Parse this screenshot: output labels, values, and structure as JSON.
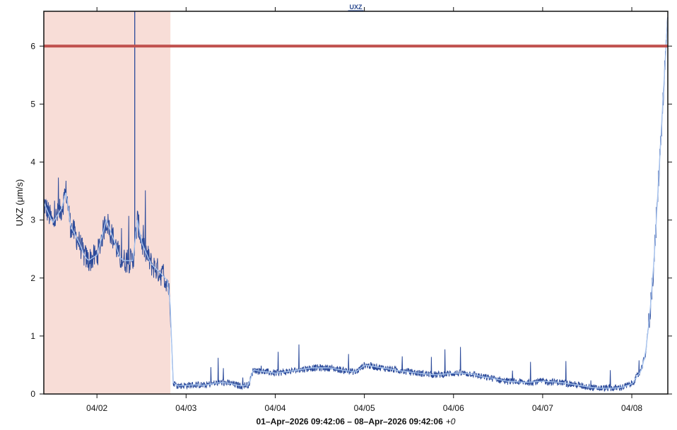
{
  "chart_data": {
    "type": "line",
    "title": "UXZ",
    "ylabel": "UXZ (μm/s)",
    "xlabel": "",
    "time_range_label": "01–Apr–2026 09:42:06 – 08–Apr–2026 09:42:06",
    "time_offset_label": "+0",
    "x_start": "2026-04-01 09:42:06",
    "x_end": "2026-04-08 09:42:06",
    "xlim_days": [
      0,
      7
    ],
    "ylim": [
      0,
      6.6
    ],
    "y_ticks": [
      0,
      1,
      2,
      3,
      4,
      5,
      6
    ],
    "x_ticks": [
      {
        "label": "04/02",
        "day": 0.596
      },
      {
        "label": "04/03",
        "day": 1.596
      },
      {
        "label": "04/04",
        "day": 2.596
      },
      {
        "label": "04/05",
        "day": 3.596
      },
      {
        "label": "04/06",
        "day": 4.596
      },
      {
        "label": "04/07",
        "day": 5.596
      },
      {
        "label": "04/08",
        "day": 6.596
      }
    ],
    "threshold": {
      "value": 6.0,
      "color": "#c0504d"
    },
    "shaded_region": {
      "x_start_day": 0.0,
      "x_end_day": 1.42,
      "color": "#f8ddd7"
    },
    "series_color": "#2b4a9a",
    "mean_color": "#a8c4ee",
    "spike": {
      "day": 1.02,
      "value": 6.6
    },
    "series": [
      {
        "x_day": [
          0.0,
          0.1,
          0.2,
          0.25,
          0.3,
          0.4,
          0.45,
          0.5,
          0.6,
          0.7,
          0.8,
          0.85,
          0.9,
          1.0,
          1.05,
          1.1,
          1.2,
          1.3,
          1.36,
          1.39,
          1.42,
          1.45,
          1.5,
          1.6,
          1.7,
          1.8,
          1.9,
          2.0,
          2.1,
          2.2,
          2.3,
          2.35,
          2.4,
          2.5,
          2.6,
          2.8,
          3.0,
          3.2,
          3.4,
          3.5,
          3.6,
          3.8,
          4.0,
          4.2,
          4.4,
          4.6,
          4.8,
          4.9,
          5.0,
          5.2,
          5.4,
          5.6,
          5.8,
          6.0,
          6.2,
          6.3,
          6.4,
          6.5,
          6.6,
          6.7,
          6.75,
          6.8,
          6.85,
          6.9,
          6.95,
          7.0
        ],
        "values": [
          3.3,
          2.95,
          3.2,
          3.5,
          2.9,
          2.6,
          2.4,
          2.3,
          2.4,
          3.0,
          2.6,
          2.35,
          2.3,
          2.3,
          3.0,
          2.6,
          2.25,
          2.1,
          2.0,
          1.95,
          1.5,
          0.2,
          0.14,
          0.15,
          0.16,
          0.15,
          0.18,
          0.2,
          0.18,
          0.14,
          0.16,
          0.42,
          0.4,
          0.38,
          0.36,
          0.4,
          0.45,
          0.45,
          0.4,
          0.38,
          0.5,
          0.45,
          0.4,
          0.36,
          0.33,
          0.36,
          0.35,
          0.3,
          0.28,
          0.22,
          0.2,
          0.22,
          0.2,
          0.15,
          0.1,
          0.1,
          0.1,
          0.12,
          0.18,
          0.4,
          0.7,
          1.4,
          2.4,
          3.8,
          5.2,
          6.5
        ]
      }
    ]
  }
}
